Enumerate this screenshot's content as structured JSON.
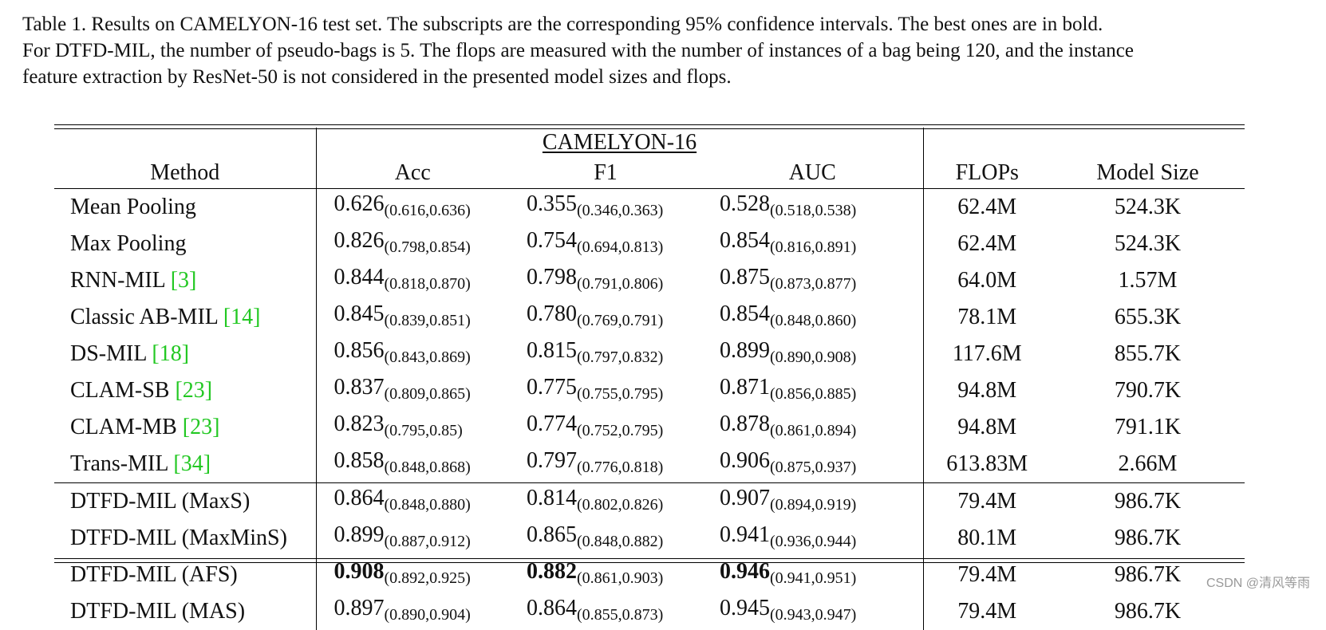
{
  "caption": {
    "lines": [
      "Table 1. Results on CAMELYON-16 test set. The subscripts are the corresponding 95% confidence intervals. The best ones are in bold.",
      "For DTFD-MIL, the number of pseudo-bags is 5. The flops are measured with the number of instances of a bag being 120, and the instance",
      "feature extraction by ResNet-50 is not considered in the presented model sizes and flops."
    ]
  },
  "table": {
    "group_header": "CAMELYON-16",
    "headers": {
      "method": "Method",
      "acc": "Acc",
      "f1": "F1",
      "auc": "AUC",
      "flops": "FLOPs",
      "size": "Model Size"
    },
    "rows": [
      {
        "name": "Mean Pooling",
        "ref": "",
        "acc": "0.626",
        "acc_ci": "(0.616,0.636)",
        "f1": "0.355",
        "f1_ci": "(0.346,0.363)",
        "auc": "0.528",
        "auc_ci": "(0.518,0.538)",
        "flops": "62.4M",
        "size": "524.3K"
      },
      {
        "name": "Max Pooling",
        "ref": "",
        "acc": "0.826",
        "acc_ci": "(0.798,0.854)",
        "f1": "0.754",
        "f1_ci": "(0.694,0.813)",
        "auc": "0.854",
        "auc_ci": "(0.816,0.891)",
        "flops": "62.4M",
        "size": "524.3K"
      },
      {
        "name": "RNN-MIL ",
        "ref": "[3]",
        "acc": "0.844",
        "acc_ci": "(0.818,0.870)",
        "f1": "0.798",
        "f1_ci": "(0.791,0.806)",
        "auc": "0.875",
        "auc_ci": "(0.873,0.877)",
        "flops": "64.0M",
        "size": "1.57M"
      },
      {
        "name": "Classic AB-MIL ",
        "ref": "[14]",
        "acc": "0.845",
        "acc_ci": "(0.839,0.851)",
        "f1": "0.780",
        "f1_ci": "(0.769,0.791)",
        "auc": "0.854",
        "auc_ci": "(0.848,0.860)",
        "flops": "78.1M",
        "size": "655.3K"
      },
      {
        "name": "DS-MIL ",
        "ref": "[18]",
        "acc": "0.856",
        "acc_ci": "(0.843,0.869)",
        "f1": "0.815",
        "f1_ci": "(0.797,0.832)",
        "auc": "0.899",
        "auc_ci": "(0.890,0.908)",
        "flops": "117.6M",
        "size": "855.7K"
      },
      {
        "name": "CLAM-SB ",
        "ref": "[23]",
        "acc": "0.837",
        "acc_ci": "(0.809,0.865)",
        "f1": "0.775",
        "f1_ci": "(0.755,0.795)",
        "auc": "0.871",
        "auc_ci": "(0.856,0.885)",
        "flops": "94.8M",
        "size": "790.7K"
      },
      {
        "name": "CLAM-MB ",
        "ref": "[23]",
        "acc": "0.823",
        "acc_ci": "(0.795,0.85)",
        "f1": "0.774",
        "f1_ci": "(0.752,0.795)",
        "auc": "0.878",
        "auc_ci": "(0.861,0.894)",
        "flops": "94.8M",
        "size": "791.1K"
      },
      {
        "name": "Trans-MIL ",
        "ref": "[34]",
        "acc": "0.858",
        "acc_ci": "(0.848,0.868)",
        "f1": "0.797",
        "f1_ci": "(0.776,0.818)",
        "auc": "0.906",
        "auc_ci": "(0.875,0.937)",
        "flops": "613.83M",
        "size": "2.66M"
      },
      {
        "name": "DTFD-MIL (MaxS)",
        "ref": "",
        "acc": "0.864",
        "acc_ci": "(0.848,0.880)",
        "f1": "0.814",
        "f1_ci": "(0.802,0.826)",
        "auc": "0.907",
        "auc_ci": "(0.894,0.919)",
        "flops": "79.4M",
        "size": "986.7K"
      },
      {
        "name": "DTFD-MIL (MaxMinS)",
        "ref": "",
        "acc": "0.899",
        "acc_ci": "(0.887,0.912)",
        "f1": "0.865",
        "f1_ci": "(0.848,0.882)",
        "auc": "0.941",
        "auc_ci": "(0.936,0.944)",
        "flops": "80.1M",
        "size": "986.7K"
      },
      {
        "name": "DTFD-MIL (AFS)",
        "ref": "",
        "acc": "0.908",
        "acc_ci": "(0.892,0.925)",
        "f1": "0.882",
        "f1_ci": "(0.861,0.903)",
        "auc": "0.946",
        "auc_ci": "(0.941,0.951)",
        "flops": "79.4M",
        "size": "986.7K",
        "best": true
      },
      {
        "name": "DTFD-MIL (MAS)",
        "ref": "",
        "acc": "0.897",
        "acc_ci": "(0.890,0.904)",
        "f1": "0.864",
        "f1_ci": "(0.855,0.873)",
        "auc": "0.945",
        "auc_ci": "(0.943,0.947)",
        "flops": "79.4M",
        "size": "986.7K"
      }
    ]
  },
  "watermark": "CSDN @清风等雨"
}
